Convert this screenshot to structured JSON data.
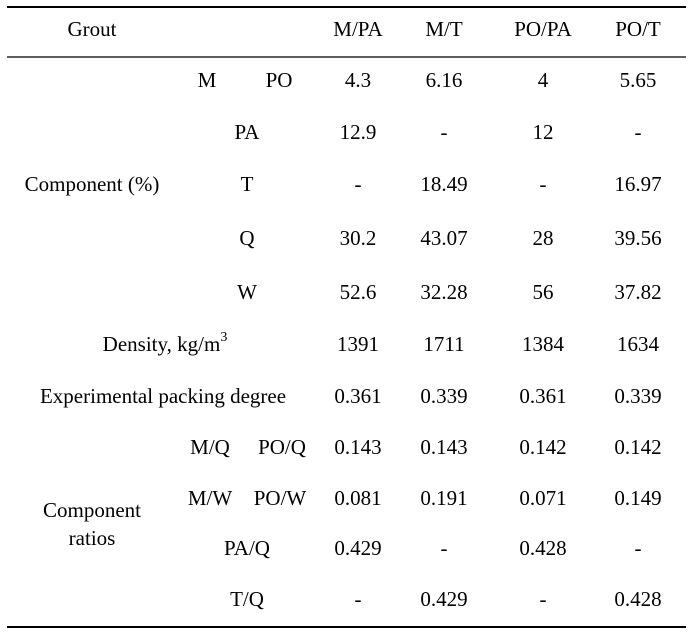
{
  "table": {
    "header": [
      "Grout",
      "M/PA",
      "M/T",
      "PO/PA",
      "PO/T"
    ],
    "group_labels": [
      {
        "lines": [
          "Component (%)"
        ]
      },
      {
        "lines": [
          "Component",
          "ratios"
        ]
      }
    ],
    "rows": [
      {
        "labels": [
          "M",
          "PO"
        ],
        "values": [
          "4.3",
          "6.16",
          "4",
          "5.65"
        ]
      },
      {
        "labels": [
          "PA"
        ],
        "values": [
          "12.9",
          "-",
          "12",
          "-"
        ]
      },
      {
        "labels": [
          "T"
        ],
        "values": [
          "-",
          "18.49",
          "-",
          "16.97"
        ]
      },
      {
        "labels": [
          "Q"
        ],
        "values": [
          "30.2",
          "43.07",
          "28",
          "39.56"
        ]
      },
      {
        "labels": [
          "W"
        ],
        "values": [
          "52.6",
          "32.28",
          "56",
          "37.82"
        ]
      },
      {
        "labels": [
          "Density, kg/m"
        ],
        "superscript": "3",
        "values": [
          "1391",
          "1711",
          "1384",
          "1634"
        ]
      },
      {
        "labels": [
          "Experimental packing degree"
        ],
        "values": [
          "0.361",
          "0.339",
          "0.361",
          "0.339"
        ]
      },
      {
        "labels": [
          "M/Q",
          "PO/Q"
        ],
        "values": [
          "0.143",
          "0.143",
          "0.142",
          "0.142"
        ]
      },
      {
        "labels": [
          "M/W",
          "PO/W"
        ],
        "values": [
          "0.081",
          "0.191",
          "0.071",
          "0.149"
        ]
      },
      {
        "labels": [
          "PA/Q"
        ],
        "values": [
          "0.429",
          "-",
          "0.428",
          "-"
        ]
      },
      {
        "labels": [
          "T/Q"
        ],
        "values": [
          "-",
          "0.429",
          "-",
          "0.428"
        ]
      }
    ]
  }
}
